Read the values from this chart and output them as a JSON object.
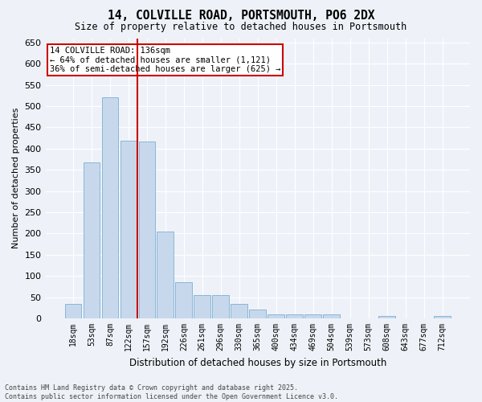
{
  "title_line1": "14, COLVILLE ROAD, PORTSMOUTH, PO6 2DX",
  "title_line2": "Size of property relative to detached houses in Portsmouth",
  "xlabel": "Distribution of detached houses by size in Portsmouth",
  "ylabel": "Number of detached properties",
  "bar_color": "#c8d8ec",
  "bar_edge_color": "#7bafd4",
  "categories": [
    "18sqm",
    "53sqm",
    "87sqm",
    "122sqm",
    "157sqm",
    "192sqm",
    "226sqm",
    "261sqm",
    "296sqm",
    "330sqm",
    "365sqm",
    "400sqm",
    "434sqm",
    "469sqm",
    "504sqm",
    "539sqm",
    "573sqm",
    "608sqm",
    "643sqm",
    "677sqm",
    "712sqm"
  ],
  "values": [
    35,
    368,
    521,
    418,
    416,
    205,
    85,
    55,
    55,
    35,
    20,
    10,
    10,
    10,
    10,
    0,
    0,
    5,
    0,
    0,
    5
  ],
  "vline_x_index": 3,
  "vline_color": "#cc0000",
  "annotation_title": "14 COLVILLE ROAD: 136sqm",
  "annotation_line1": "← 64% of detached houses are smaller (1,121)",
  "annotation_line2": "36% of semi-detached houses are larger (625) →",
  "annotation_box_color": "#cc0000",
  "ylim": [
    0,
    660
  ],
  "yticks": [
    0,
    50,
    100,
    150,
    200,
    250,
    300,
    350,
    400,
    450,
    500,
    550,
    600,
    650
  ],
  "footnote_line1": "Contains HM Land Registry data © Crown copyright and database right 2025.",
  "footnote_line2": "Contains public sector information licensed under the Open Government Licence v3.0.",
  "background_color": "#eef2f8",
  "plot_bg_color": "#eef2f8"
}
